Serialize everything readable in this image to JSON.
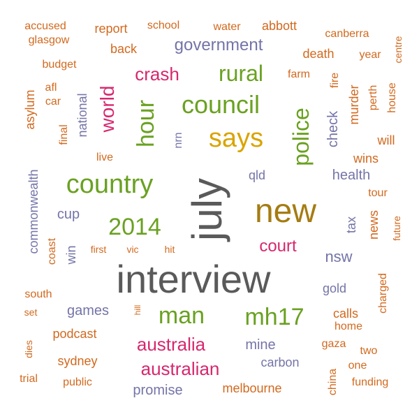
{
  "chart_data": {
    "type": "wordcloud",
    "palette": {
      "orange": "#d2691e",
      "green": "#6aa121",
      "purple": "#7474a8",
      "magenta": "#d6286e",
      "gold": "#d9a400",
      "olive": "#a57c12",
      "gray": "#5a5a5a"
    },
    "words": [
      {
        "text": "interview",
        "color": "gray"
      },
      {
        "text": "july",
        "color": "gray"
      },
      {
        "text": "new",
        "color": "olive"
      },
      {
        "text": "says",
        "color": "gold"
      },
      {
        "text": "country",
        "color": "green"
      },
      {
        "text": "council",
        "color": "green"
      },
      {
        "text": "police",
        "color": "green"
      },
      {
        "text": "hour",
        "color": "green"
      },
      {
        "text": "2014",
        "color": "green"
      },
      {
        "text": "man",
        "color": "green"
      },
      {
        "text": "mh17",
        "color": "green"
      },
      {
        "text": "rural",
        "color": "green"
      },
      {
        "text": "australia",
        "color": "magenta"
      },
      {
        "text": "australian",
        "color": "magenta"
      },
      {
        "text": "world",
        "color": "magenta"
      },
      {
        "text": "crash",
        "color": "magenta"
      },
      {
        "text": "court",
        "color": "magenta"
      },
      {
        "text": "government",
        "color": "purple"
      },
      {
        "text": "nsw",
        "color": "purple"
      },
      {
        "text": "mine",
        "color": "purple"
      },
      {
        "text": "carbon",
        "color": "purple"
      },
      {
        "text": "games",
        "color": "purple"
      },
      {
        "text": "promise",
        "color": "purple"
      },
      {
        "text": "health",
        "color": "purple"
      },
      {
        "text": "gold",
        "color": "purple"
      },
      {
        "text": "check",
        "color": "purple"
      },
      {
        "text": "cup",
        "color": "purple"
      },
      {
        "text": "commonwealth",
        "color": "purple"
      },
      {
        "text": "national",
        "color": "purple"
      },
      {
        "text": "win",
        "color": "purple"
      },
      {
        "text": "qld",
        "color": "purple"
      },
      {
        "text": "nrn",
        "color": "purple"
      },
      {
        "text": "tax",
        "color": "purple"
      },
      {
        "text": "accused",
        "color": "orange"
      },
      {
        "text": "glasgow",
        "color": "orange"
      },
      {
        "text": "report",
        "color": "orange"
      },
      {
        "text": "school",
        "color": "orange"
      },
      {
        "text": "water",
        "color": "orange"
      },
      {
        "text": "abbott",
        "color": "orange"
      },
      {
        "text": "canberra",
        "color": "orange"
      },
      {
        "text": "centre",
        "color": "orange"
      },
      {
        "text": "back",
        "color": "orange"
      },
      {
        "text": "death",
        "color": "orange"
      },
      {
        "text": "year",
        "color": "orange"
      },
      {
        "text": "budget",
        "color": "orange"
      },
      {
        "text": "farm",
        "color": "orange"
      },
      {
        "text": "afl",
        "color": "orange"
      },
      {
        "text": "car",
        "color": "orange"
      },
      {
        "text": "asylum",
        "color": "orange"
      },
      {
        "text": "fire",
        "color": "orange"
      },
      {
        "text": "murder",
        "color": "orange"
      },
      {
        "text": "perth",
        "color": "orange"
      },
      {
        "text": "house",
        "color": "orange"
      },
      {
        "text": "final",
        "color": "orange"
      },
      {
        "text": "live",
        "color": "orange"
      },
      {
        "text": "will",
        "color": "orange"
      },
      {
        "text": "wins",
        "color": "orange"
      },
      {
        "text": "tour",
        "color": "orange"
      },
      {
        "text": "news",
        "color": "orange"
      },
      {
        "text": "future",
        "color": "orange"
      },
      {
        "text": "coast",
        "color": "orange"
      },
      {
        "text": "first",
        "color": "orange"
      },
      {
        "text": "vic",
        "color": "orange"
      },
      {
        "text": "hit",
        "color": "orange"
      },
      {
        "text": "south",
        "color": "orange"
      },
      {
        "text": "set",
        "color": "orange"
      },
      {
        "text": "hill",
        "color": "orange"
      },
      {
        "text": "charged",
        "color": "orange"
      },
      {
        "text": "calls",
        "color": "orange"
      },
      {
        "text": "home",
        "color": "orange"
      },
      {
        "text": "podcast",
        "color": "orange"
      },
      {
        "text": "gaza",
        "color": "orange"
      },
      {
        "text": "dies",
        "color": "orange"
      },
      {
        "text": "sydney",
        "color": "orange"
      },
      {
        "text": "two",
        "color": "orange"
      },
      {
        "text": "one",
        "color": "orange"
      },
      {
        "text": "trial",
        "color": "orange"
      },
      {
        "text": "public",
        "color": "orange"
      },
      {
        "text": "melbourne",
        "color": "orange"
      },
      {
        "text": "china",
        "color": "orange"
      },
      {
        "text": "funding",
        "color": "orange"
      }
    ]
  }
}
